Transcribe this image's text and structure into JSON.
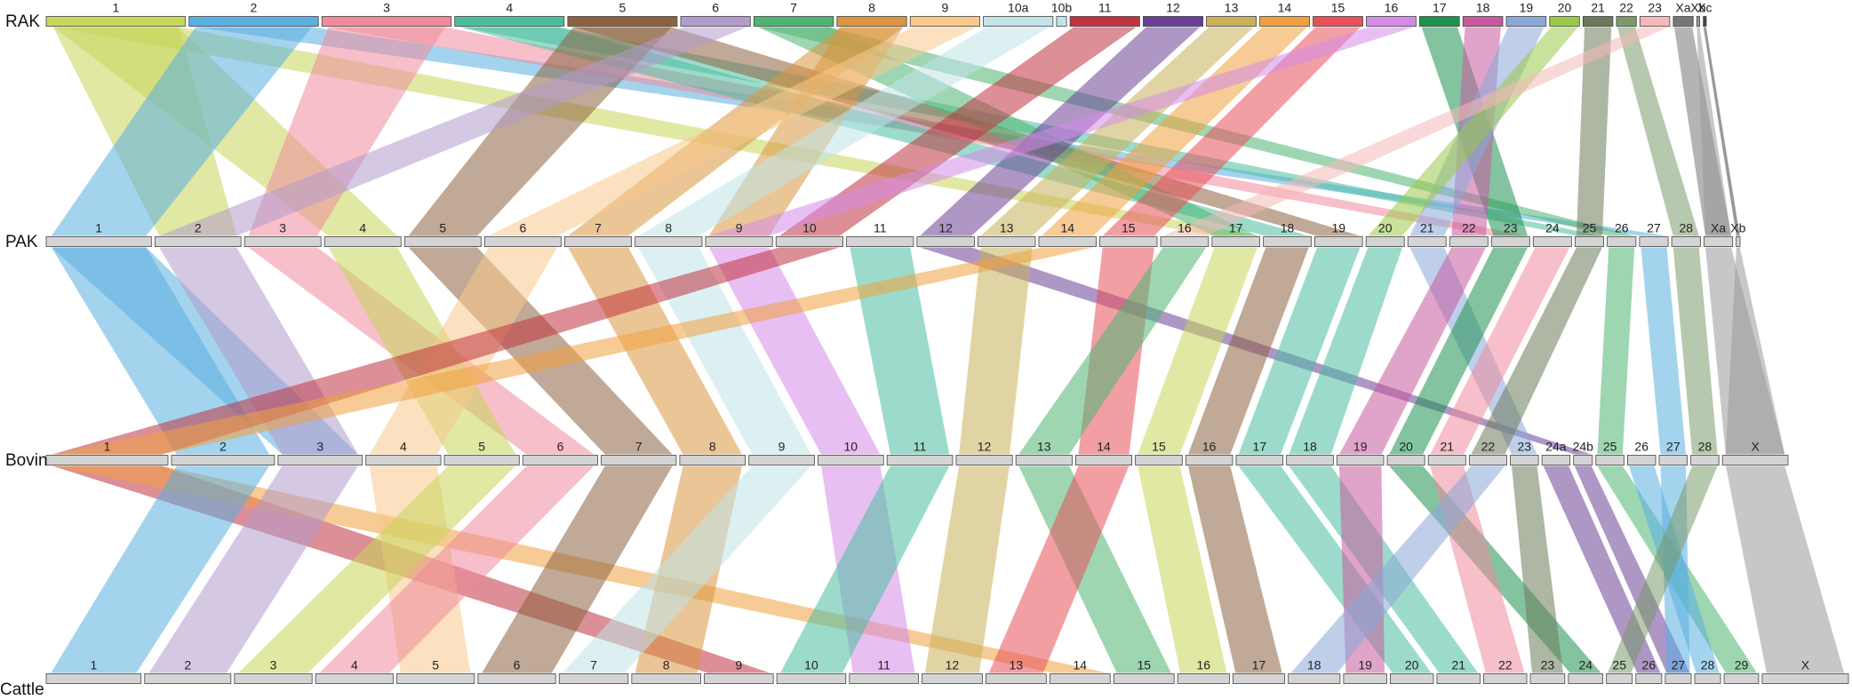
{
  "tracks": [
    {
      "name": "RAK",
      "chromosomes": [
        {
          "label": "1",
          "color": "#c6d659"
        },
        {
          "label": "2",
          "color": "#5aafe0"
        },
        {
          "label": "3",
          "color": "#ef8a9c"
        },
        {
          "label": "4",
          "color": "#4bbea0"
        },
        {
          "label": "5",
          "color": "#8c6240"
        },
        {
          "label": "6",
          "color": "#b39bcc"
        },
        {
          "label": "7",
          "color": "#4fb472"
        },
        {
          "label": "8",
          "color": "#d9953f"
        },
        {
          "label": "9",
          "color": "#f7c88a"
        },
        {
          "label": "10a",
          "color": "#c0e4e8"
        },
        {
          "label": "10b",
          "color": "#c0e4e8"
        },
        {
          "label": "11",
          "color": "#c0333f"
        },
        {
          "label": "12",
          "color": "#6b3f96"
        },
        {
          "label": "13",
          "color": "#c9b15a"
        },
        {
          "label": "14",
          "color": "#f0a040"
        },
        {
          "label": "15",
          "color": "#e8505a"
        },
        {
          "label": "16",
          "color": "#d58ae8"
        },
        {
          "label": "17",
          "color": "#1f9150"
        },
        {
          "label": "18",
          "color": "#c75a9e"
        },
        {
          "label": "19",
          "color": "#8aa8d8"
        },
        {
          "label": "20",
          "color": "#9bc84a"
        },
        {
          "label": "21",
          "color": "#6b7a5a"
        },
        {
          "label": "22",
          "color": "#7a9a6a"
        },
        {
          "label": "23",
          "color": "#f4b8b8"
        },
        {
          "label": "Xa",
          "color": "#777777"
        },
        {
          "label": "Xb",
          "color": "#999999"
        },
        {
          "label": "Xc",
          "color": "#444444"
        }
      ]
    },
    {
      "name": "PAK",
      "chromosomes": [
        "1",
        "2",
        "3",
        "4",
        "5",
        "6",
        "7",
        "8",
        "9",
        "10",
        "11",
        "12",
        "13",
        "14",
        "15",
        "16",
        "17",
        "18",
        "19",
        "20",
        "21",
        "22",
        "23",
        "24",
        "25",
        "26",
        "27",
        "28",
        "Xa",
        "Xb"
      ]
    },
    {
      "name": "Bovin",
      "chromosomes": [
        "1",
        "2",
        "3",
        "4",
        "5",
        "6",
        "7",
        "8",
        "9",
        "10",
        "11",
        "12",
        "13",
        "14",
        "15",
        "16",
        "17",
        "18",
        "19",
        "20",
        "21",
        "22",
        "23",
        "24a",
        "24b",
        "25",
        "26",
        "27",
        "28",
        "X"
      ]
    },
    {
      "name": "Cattle",
      "chromosomes": [
        "1",
        "2",
        "3",
        "4",
        "5",
        "6",
        "7",
        "8",
        "9",
        "10",
        "11",
        "12",
        "13",
        "14",
        "15",
        "16",
        "17",
        "18",
        "19",
        "20",
        "21",
        "22",
        "23",
        "24",
        "25",
        "26",
        "27",
        "28",
        "29",
        "X"
      ]
    }
  ],
  "ribbons": [
    {
      "from": [
        0,
        0
      ],
      "to": [
        1,
        1
      ],
      "color": "#c6d659"
    },
    {
      "from": [
        0,
        0
      ],
      "to": [
        1,
        3
      ],
      "color": "#c6d659"
    },
    {
      "from": [
        0,
        0
      ],
      "to": [
        1,
        16
      ],
      "color": "#c6d659"
    },
    {
      "from": [
        0,
        1
      ],
      "to": [
        1,
        0
      ],
      "color": "#5aafe0"
    },
    {
      "from": [
        0,
        1
      ],
      "to": [
        1,
        26
      ],
      "color": "#5aafe0"
    },
    {
      "from": [
        0,
        2
      ],
      "to": [
        1,
        2
      ],
      "color": "#ef8a9c"
    },
    {
      "from": [
        0,
        2
      ],
      "to": [
        1,
        22
      ],
      "color": "#ef8a9c"
    },
    {
      "from": [
        0,
        3
      ],
      "to": [
        1,
        17
      ],
      "color": "#4bbea0"
    },
    {
      "from": [
        0,
        3
      ],
      "to": [
        1,
        24
      ],
      "color": "#4bbea0"
    },
    {
      "from": [
        0,
        4
      ],
      "to": [
        1,
        4
      ],
      "color": "#8c6240"
    },
    {
      "from": [
        0,
        4
      ],
      "to": [
        1,
        18
      ],
      "color": "#8c6240"
    },
    {
      "from": [
        0,
        5
      ],
      "to": [
        1,
        1
      ],
      "color": "#b39bcc"
    },
    {
      "from": [
        0,
        6
      ],
      "to": [
        1,
        16
      ],
      "color": "#4fb472"
    },
    {
      "from": [
        0,
        6
      ],
      "to": [
        1,
        25
      ],
      "color": "#4fb472"
    },
    {
      "from": [
        0,
        7
      ],
      "to": [
        1,
        6
      ],
      "color": "#d9953f"
    },
    {
      "from": [
        0,
        7
      ],
      "to": [
        1,
        8
      ],
      "color": "#d9953f"
    },
    {
      "from": [
        0,
        8
      ],
      "to": [
        1,
        5
      ],
      "color": "#f7c88a"
    },
    {
      "from": [
        0,
        9
      ],
      "to": [
        1,
        7
      ],
      "color": "#c0e4e8"
    },
    {
      "from": [
        0,
        11
      ],
      "to": [
        1,
        9
      ],
      "color": "#c0333f"
    },
    {
      "from": [
        0,
        12
      ],
      "to": [
        1,
        11
      ],
      "color": "#6b3f96"
    },
    {
      "from": [
        0,
        13
      ],
      "to": [
        1,
        12
      ],
      "color": "#c9b15a"
    },
    {
      "from": [
        0,
        14
      ],
      "to": [
        1,
        13
      ],
      "color": "#f0a040"
    },
    {
      "from": [
        0,
        15
      ],
      "to": [
        1,
        14
      ],
      "color": "#e8505a"
    },
    {
      "from": [
        0,
        16
      ],
      "to": [
        1,
        8
      ],
      "color": "#d58ae8"
    },
    {
      "from": [
        0,
        17
      ],
      "to": [
        1,
        22
      ],
      "color": "#1f9150"
    },
    {
      "from": [
        0,
        18
      ],
      "to": [
        1,
        21
      ],
      "color": "#c75a9e"
    },
    {
      "from": [
        0,
        19
      ],
      "to": [
        1,
        20
      ],
      "color": "#8aa8d8"
    },
    {
      "from": [
        0,
        20
      ],
      "to": [
        1,
        19
      ],
      "color": "#9bc84a"
    },
    {
      "from": [
        0,
        21
      ],
      "to": [
        1,
        24
      ],
      "color": "#6b7a5a"
    },
    {
      "from": [
        0,
        22
      ],
      "to": [
        1,
        27
      ],
      "color": "#7a9a6a"
    },
    {
      "from": [
        0,
        23
      ],
      "to": [
        1,
        15
      ],
      "color": "#f4b8b8"
    },
    {
      "from": [
        0,
        24
      ],
      "to": [
        1,
        28
      ],
      "color": "#777777"
    },
    {
      "from": [
        0,
        25
      ],
      "to": [
        1,
        28
      ],
      "color": "#999999"
    },
    {
      "from": [
        0,
        26
      ],
      "to": [
        1,
        29
      ],
      "color": "#444444"
    },
    {
      "from": [
        1,
        0
      ],
      "to": [
        2,
        1
      ],
      "color": "#5aafe0"
    },
    {
      "from": [
        1,
        0
      ],
      "to": [
        2,
        2
      ],
      "color": "#5aafe0"
    },
    {
      "from": [
        1,
        1
      ],
      "to": [
        2,
        2
      ],
      "color": "#b39bcc"
    },
    {
      "from": [
        1,
        2
      ],
      "to": [
        2,
        5
      ],
      "color": "#ef8a9c"
    },
    {
      "from": [
        1,
        3
      ],
      "to": [
        2,
        4
      ],
      "color": "#c6d659"
    },
    {
      "from": [
        1,
        4
      ],
      "to": [
        2,
        6
      ],
      "color": "#8c6240"
    },
    {
      "from": [
        1,
        5
      ],
      "to": [
        2,
        3
      ],
      "color": "#f7c88a"
    },
    {
      "from": [
        1,
        6
      ],
      "to": [
        2,
        7
      ],
      "color": "#d9953f"
    },
    {
      "from": [
        1,
        7
      ],
      "to": [
        2,
        8
      ],
      "color": "#c0e4e8"
    },
    {
      "from": [
        1,
        8
      ],
      "to": [
        2,
        9
      ],
      "color": "#d58ae8"
    },
    {
      "from": [
        1,
        9
      ],
      "to": [
        2,
        0
      ],
      "color": "#c0333f"
    },
    {
      "from": [
        1,
        10
      ],
      "to": [
        2,
        10
      ],
      "color": "#4bbea0"
    },
    {
      "from": [
        1,
        11
      ],
      "to": [
        2,
        24
      ],
      "color": "#6b3f96"
    },
    {
      "from": [
        1,
        12
      ],
      "to": [
        2,
        11
      ],
      "color": "#c9b15a"
    },
    {
      "from": [
        1,
        13
      ],
      "to": [
        2,
        0
      ],
      "color": "#f0a040"
    },
    {
      "from": [
        1,
        14
      ],
      "to": [
        2,
        13
      ],
      "color": "#e8505a"
    },
    {
      "from": [
        1,
        15
      ],
      "to": [
        2,
        12
      ],
      "color": "#4fb472"
    },
    {
      "from": [
        1,
        16
      ],
      "to": [
        2,
        14
      ],
      "color": "#c6d659"
    },
    {
      "from": [
        1,
        17
      ],
      "to": [
        2,
        15
      ],
      "color": "#8c6240"
    },
    {
      "from": [
        1,
        18
      ],
      "to": [
        2,
        16
      ],
      "color": "#4bbea0"
    },
    {
      "from": [
        1,
        19
      ],
      "to": [
        2,
        17
      ],
      "color": "#4bbea0"
    },
    {
      "from": [
        1,
        20
      ],
      "to": [
        2,
        22
      ],
      "color": "#8aa8d8"
    },
    {
      "from": [
        1,
        21
      ],
      "to": [
        2,
        18
      ],
      "color": "#c75a9e"
    },
    {
      "from": [
        1,
        22
      ],
      "to": [
        2,
        19
      ],
      "color": "#1f9150"
    },
    {
      "from": [
        1,
        23
      ],
      "to": [
        2,
        20
      ],
      "color": "#ef8a9c"
    },
    {
      "from": [
        1,
        24
      ],
      "to": [
        2,
        21
      ],
      "color": "#6b7a5a"
    },
    {
      "from": [
        1,
        25
      ],
      "to": [
        2,
        25
      ],
      "color": "#4fb472"
    },
    {
      "from": [
        1,
        26
      ],
      "to": [
        2,
        27
      ],
      "color": "#5aafe0"
    },
    {
      "from": [
        1,
        27
      ],
      "to": [
        2,
        28
      ],
      "color": "#7a9a6a"
    },
    {
      "from": [
        1,
        28
      ],
      "to": [
        2,
        29
      ],
      "color": "#999999"
    },
    {
      "from": [
        1,
        29
      ],
      "to": [
        2,
        29
      ],
      "color": "#999999"
    },
    {
      "from": [
        2,
        0
      ],
      "to": [
        3,
        8
      ],
      "color": "#c0333f"
    },
    {
      "from": [
        2,
        0
      ],
      "to": [
        3,
        13
      ],
      "color": "#f0a040"
    },
    {
      "from": [
        2,
        1
      ],
      "to": [
        3,
        0
      ],
      "color": "#5aafe0"
    },
    {
      "from": [
        2,
        2
      ],
      "to": [
        3,
        1
      ],
      "color": "#b39bcc"
    },
    {
      "from": [
        2,
        3
      ],
      "to": [
        3,
        4
      ],
      "color": "#f7c88a"
    },
    {
      "from": [
        2,
        4
      ],
      "to": [
        3,
        2
      ],
      "color": "#c6d659"
    },
    {
      "from": [
        2,
        5
      ],
      "to": [
        3,
        3
      ],
      "color": "#ef8a9c"
    },
    {
      "from": [
        2,
        6
      ],
      "to": [
        3,
        5
      ],
      "color": "#8c6240"
    },
    {
      "from": [
        2,
        7
      ],
      "to": [
        3,
        7
      ],
      "color": "#d9953f"
    },
    {
      "from": [
        2,
        8
      ],
      "to": [
        3,
        6
      ],
      "color": "#c0e4e8"
    },
    {
      "from": [
        2,
        9
      ],
      "to": [
        3,
        10
      ],
      "color": "#d58ae8"
    },
    {
      "from": [
        2,
        10
      ],
      "to": [
        3,
        9
      ],
      "color": "#4bbea0"
    },
    {
      "from": [
        2,
        11
      ],
      "to": [
        3,
        11
      ],
      "color": "#c9b15a"
    },
    {
      "from": [
        2,
        12
      ],
      "to": [
        3,
        14
      ],
      "color": "#4fb472"
    },
    {
      "from": [
        2,
        13
      ],
      "to": [
        3,
        12
      ],
      "color": "#e8505a"
    },
    {
      "from": [
        2,
        14
      ],
      "to": [
        3,
        15
      ],
      "color": "#c6d659"
    },
    {
      "from": [
        2,
        15
      ],
      "to": [
        3,
        16
      ],
      "color": "#8c6240"
    },
    {
      "from": [
        2,
        16
      ],
      "to": [
        3,
        19
      ],
      "color": "#4bbea0"
    },
    {
      "from": [
        2,
        17
      ],
      "to": [
        3,
        20
      ],
      "color": "#4bbea0"
    },
    {
      "from": [
        2,
        18
      ],
      "to": [
        3,
        18
      ],
      "color": "#c75a9e"
    },
    {
      "from": [
        2,
        19
      ],
      "to": [
        3,
        23
      ],
      "color": "#1f9150"
    },
    {
      "from": [
        2,
        20
      ],
      "to": [
        3,
        21
      ],
      "color": "#ef8a9c"
    },
    {
      "from": [
        2,
        21
      ],
      "to": [
        3,
        17
      ],
      "color": "#8aa8d8"
    },
    {
      "from": [
        2,
        22
      ],
      "to": [
        3,
        22
      ],
      "color": "#6b7a5a"
    },
    {
      "from": [
        2,
        23
      ],
      "to": [
        3,
        25
      ],
      "color": "#6b3f96"
    },
    {
      "from": [
        2,
        24
      ],
      "to": [
        3,
        26
      ],
      "color": "#6b3f96"
    },
    {
      "from": [
        2,
        25
      ],
      "to": [
        3,
        28
      ],
      "color": "#4fb472"
    },
    {
      "from": [
        2,
        26
      ],
      "to": [
        3,
        27
      ],
      "color": "#5aafe0"
    },
    {
      "from": [
        2,
        27
      ],
      "to": [
        3,
        26
      ],
      "color": "#5aafe0"
    },
    {
      "from": [
        2,
        28
      ],
      "to": [
        3,
        24
      ],
      "color": "#7a9a6a"
    },
    {
      "from": [
        2,
        29
      ],
      "to": [
        3,
        29
      ],
      "color": "#999999"
    }
  ]
}
